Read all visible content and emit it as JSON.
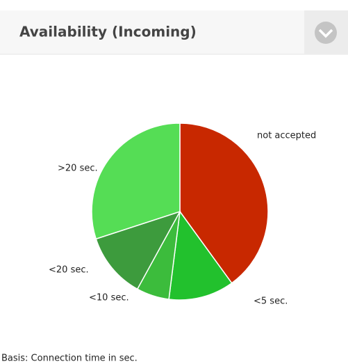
{
  "chart_data": {
    "type": "pie",
    "title": "Availability (Incoming)",
    "categories": [
      "not accepted",
      "<5 sec.",
      "<10 sec.",
      "<20 sec.",
      ">20 sec."
    ],
    "values": [
      40,
      12,
      6,
      12,
      30
    ],
    "colors": [
      "#c82800",
      "#22c12d",
      "#3cbc3c",
      "#3d9b3d",
      "#55dd55"
    ],
    "note": "Basis: Connection time in sec."
  }
}
